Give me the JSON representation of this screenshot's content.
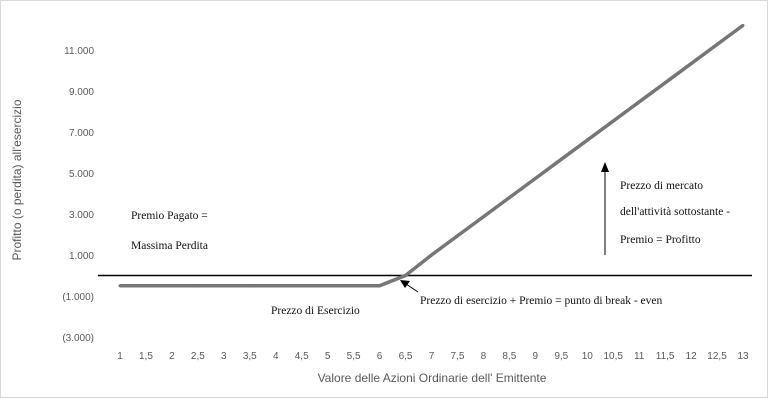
{
  "chart_data": {
    "type": "line",
    "title": "",
    "xlabel": "Valore delle Azioni Ordinarie dell' Emittente",
    "ylabel": "Profitto (o perdita) all'esercizio",
    "x": [
      1,
      1.5,
      2,
      2.5,
      3,
      3.5,
      4,
      4.5,
      5,
      5.5,
      6,
      6.5,
      7,
      7.5,
      8,
      8.5,
      9,
      9.5,
      10,
      10.5,
      11,
      11.5,
      12,
      12.5,
      13
    ],
    "x_tick_labels": [
      "1",
      "1,5",
      "2",
      "2,5",
      "3",
      "3,5",
      "4",
      "4,5",
      "5",
      "5,5",
      "6",
      "6,5",
      "7",
      "7,5",
      "8",
      "8,5",
      "9",
      "9,5",
      "10",
      "10,5",
      "11",
      "11,5",
      "12",
      "12,5",
      "13"
    ],
    "series": [
      {
        "name": "",
        "values": [
          -500,
          -500,
          -500,
          -500,
          -500,
          -500,
          -500,
          -500,
          -500,
          -500,
          -500,
          0,
          1000,
          1933,
          2867,
          3800,
          4733,
          5667,
          6600,
          7533,
          8467,
          9400,
          10333,
          11267,
          12200
        ]
      }
    ],
    "break_even_price": 6.25,
    "ylim": [
      -3000,
      11000
    ],
    "y_ticks": [
      -3000,
      -1000,
      1000,
      3000,
      5000,
      7000,
      9000,
      11000
    ],
    "y_tick_labels": [
      "(3.000)",
      "(1.000)",
      "1.000",
      "3.000",
      "5.000",
      "7.000",
      "9.000",
      "11.000"
    ],
    "grid": false,
    "line_color": "#767676",
    "zero_line_color": "#000000",
    "annotations": {
      "premio_line1": "Premio Pagato =",
      "premio_line2": "Massima Perdita",
      "mercato_line1": "Prezzo di mercato",
      "mercato_line2": "dell'attività sottostante -",
      "mercato_line3": "Premio = Profitto",
      "esercizio": "Prezzo di Esercizio",
      "break_even": "Prezzo di esercizio + Premio = punto di break - even"
    }
  }
}
